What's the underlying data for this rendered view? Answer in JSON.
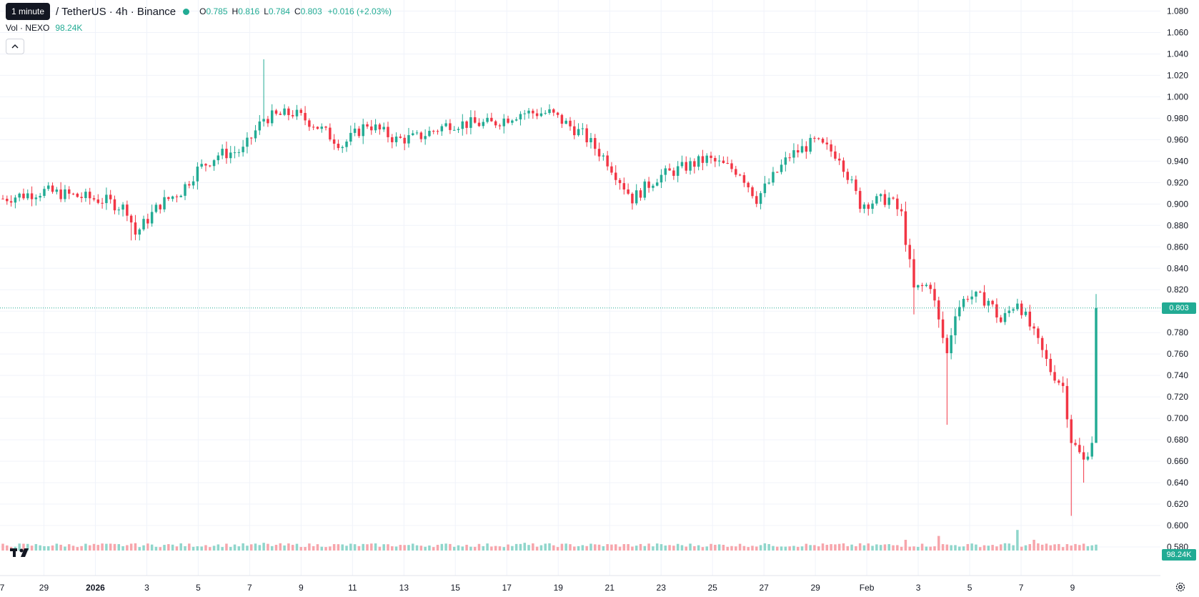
{
  "header": {
    "tooltip": "1 minute",
    "title": "/ TetherUS · 4h · Binance",
    "ohlc": {
      "open_label": "O",
      "open": "0.785",
      "high_label": "H",
      "high": "0.816",
      "low_label": "L",
      "low": "0.784",
      "close_label": "C",
      "close": "0.803",
      "change": "+0.016 (+2.03%)"
    },
    "volume_label": "Vol · NEXO",
    "volume_value": "98.24K"
  },
  "price_tag": "0.803",
  "volume_tag": "98.24K",
  "colors": {
    "up": "#22ab94",
    "down": "#f23645",
    "up_volume": "#8fd6cb",
    "down_volume": "#f7a5ab",
    "grid": "#f0f3fa",
    "axis_text": "#131722"
  },
  "icons": {
    "collapse": "chevron-up-icon",
    "logo": "tradingview-logo",
    "settings": "gear-icon"
  },
  "chart_data": {
    "type": "candlestick",
    "title": "",
    "interval": "4h",
    "ylim": [
      0.57,
      1.085
    ],
    "y_ticks": [
      "1.080",
      "1.060",
      "1.040",
      "1.020",
      "1.000",
      "0.980",
      "0.960",
      "0.940",
      "0.920",
      "0.900",
      "0.880",
      "0.860",
      "0.840",
      "0.820",
      "0.800",
      "0.780",
      "0.760",
      "0.740",
      "0.720",
      "0.700",
      "0.680",
      "0.660",
      "0.640",
      "0.620",
      "0.600",
      "0.580"
    ],
    "x_ticks": [
      "7",
      "29",
      "2026",
      "3",
      "5",
      "7",
      "9",
      "11",
      "13",
      "15",
      "17",
      "19",
      "21",
      "23",
      "25",
      "27",
      "29",
      "Feb",
      "3",
      "5",
      "7",
      "9"
    ],
    "current_price": 0.803,
    "last_volume": "98.24K",
    "candle_count": 265,
    "waypoints": [
      [
        0,
        0.905
      ],
      [
        10,
        0.912
      ],
      [
        25,
        0.903
      ],
      [
        30,
        0.895
      ],
      [
        32,
        0.872
      ],
      [
        38,
        0.9
      ],
      [
        43,
        0.912
      ],
      [
        47,
        0.932
      ],
      [
        52,
        0.946
      ],
      [
        58,
        0.95
      ],
      [
        63,
        0.98
      ],
      [
        70,
        0.985
      ],
      [
        75,
        0.975
      ],
      [
        82,
        0.955
      ],
      [
        88,
        0.975
      ],
      [
        95,
        0.96
      ],
      [
        100,
        0.962
      ],
      [
        108,
        0.975
      ],
      [
        118,
        0.975
      ],
      [
        125,
        0.985
      ],
      [
        132,
        0.985
      ],
      [
        140,
        0.965
      ],
      [
        146,
        0.94
      ],
      [
        152,
        0.905
      ],
      [
        158,
        0.925
      ],
      [
        165,
        0.935
      ],
      [
        170,
        0.942
      ],
      [
        178,
        0.93
      ],
      [
        182,
        0.905
      ],
      [
        186,
        0.925
      ],
      [
        190,
        0.945
      ],
      [
        196,
        0.958
      ],
      [
        202,
        0.945
      ],
      [
        207,
        0.9
      ],
      [
        214,
        0.905
      ],
      [
        217,
        0.89
      ],
      [
        220,
        0.82
      ],
      [
        224,
        0.825
      ],
      [
        226,
        0.79
      ],
      [
        228,
        0.76
      ],
      [
        230,
        0.8
      ],
      [
        233,
        0.815
      ],
      [
        238,
        0.81
      ],
      [
        241,
        0.79
      ],
      [
        245,
        0.81
      ],
      [
        250,
        0.77
      ],
      [
        253,
        0.745
      ],
      [
        256,
        0.73
      ],
      [
        258,
        0.68
      ],
      [
        261,
        0.66
      ],
      [
        265,
        0.7
      ],
      [
        269,
        0.76
      ],
      [
        272,
        0.775
      ],
      [
        276,
        0.773
      ],
      [
        279,
        0.795
      ],
      [
        282,
        0.803
      ]
    ],
    "volume_spikes": [
      [
        31,
        1.6
      ],
      [
        63,
        1.8
      ],
      [
        126,
        1.8
      ],
      [
        185,
        1.5
      ],
      [
        218,
        2.5
      ],
      [
        226,
        3.4
      ],
      [
        242,
        1.7
      ],
      [
        245,
        4.8
      ],
      [
        249,
        2.5
      ],
      [
        252,
        1.6
      ]
    ]
  }
}
